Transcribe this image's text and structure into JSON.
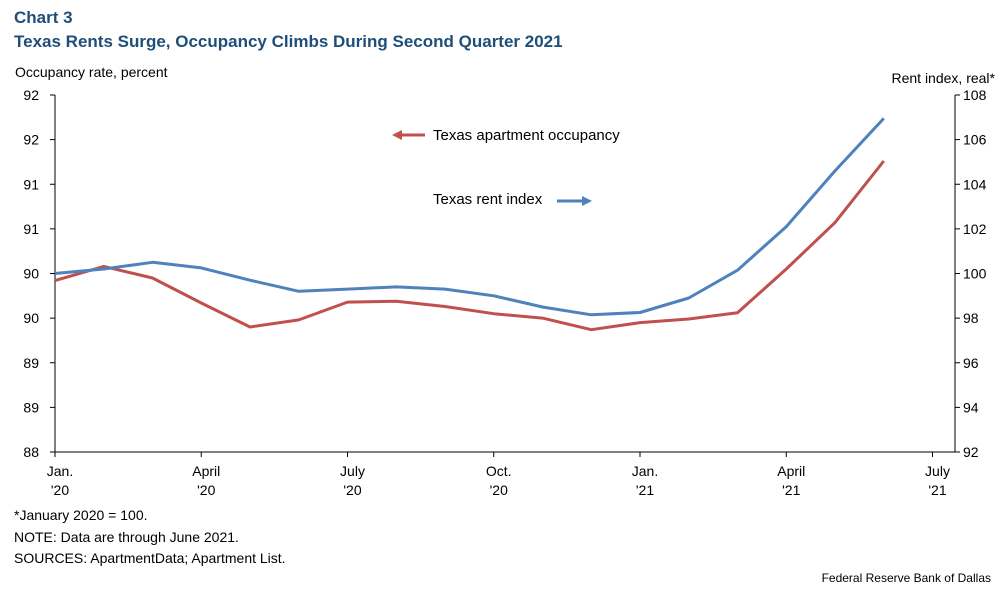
{
  "header": {
    "chart_number": "Chart 3",
    "title": "Texas Rents Surge, Occupancy Climbs During Second Quarter 2021"
  },
  "footer": {
    "note_index": "*January 2020 = 100.",
    "note_data": "NOTE: Data are through June 2021.",
    "sources": "SOURCES: ApartmentData; Apartment List.",
    "credit": "Federal Reserve Bank of Dallas"
  },
  "colors": {
    "occupancy": "#c0504d",
    "rent": "#4f81bd"
  },
  "chart_data": {
    "type": "line",
    "ylabel_left": "Occupancy rate, percent",
    "ylabel_right": "Rent index, real*",
    "x_ticks": [
      {
        "l1": "Jan.",
        "l2": "'20"
      },
      {
        "l1": "April",
        "l2": "'20"
      },
      {
        "l1": "July",
        "l2": "'20"
      },
      {
        "l1": "Oct.",
        "l2": "'20"
      },
      {
        "l1": "Jan.",
        "l2": "'21"
      },
      {
        "l1": "April",
        "l2": "'21"
      },
      {
        "l1": "July",
        "l2": "'21"
      }
    ],
    "x_months": [
      "Jan. 2020",
      "Feb. 2020",
      "Mar. 2020",
      "Apr. 2020",
      "May 2020",
      "Jun. 2020",
      "Jul. 2020",
      "Aug. 2020",
      "Sep. 2020",
      "Oct. 2020",
      "Nov. 2020",
      "Dec. 2020",
      "Jan. 2021",
      "Feb. 2021",
      "Mar. 2021",
      "Apr. 2021",
      "May 2021",
      "Jun. 2021"
    ],
    "left_axis": {
      "ticks": [
        "92",
        "92",
        "91",
        "91",
        "90",
        "90",
        "89",
        "89",
        "88"
      ],
      "ylim": [
        88,
        92
      ]
    },
    "right_axis": {
      "ticks": [
        "108",
        "106",
        "104",
        "102",
        "100",
        "98",
        "96",
        "94",
        "92"
      ],
      "ylim": [
        92,
        108
      ]
    },
    "series": [
      {
        "name": "Texas apartment occupancy",
        "axis": "left",
        "values": [
          89.92,
          90.08,
          89.95,
          89.67,
          89.4,
          89.48,
          89.68,
          89.69,
          89.63,
          89.55,
          89.5,
          89.37,
          89.45,
          89.49,
          89.56,
          90.05,
          90.57,
          91.26
        ]
      },
      {
        "name": "Texas rent index",
        "axis": "right",
        "values": [
          100.0,
          100.2,
          100.5,
          100.25,
          99.7,
          99.2,
          99.3,
          99.4,
          99.3,
          99.0,
          98.5,
          98.15,
          98.25,
          98.9,
          100.15,
          102.1,
          104.6,
          106.95
        ]
      }
    ],
    "legend": [
      {
        "label": "Texas apartment occupancy",
        "arrow": "left"
      },
      {
        "label": "Texas rent index",
        "arrow": "right"
      }
    ],
    "grid": false
  }
}
